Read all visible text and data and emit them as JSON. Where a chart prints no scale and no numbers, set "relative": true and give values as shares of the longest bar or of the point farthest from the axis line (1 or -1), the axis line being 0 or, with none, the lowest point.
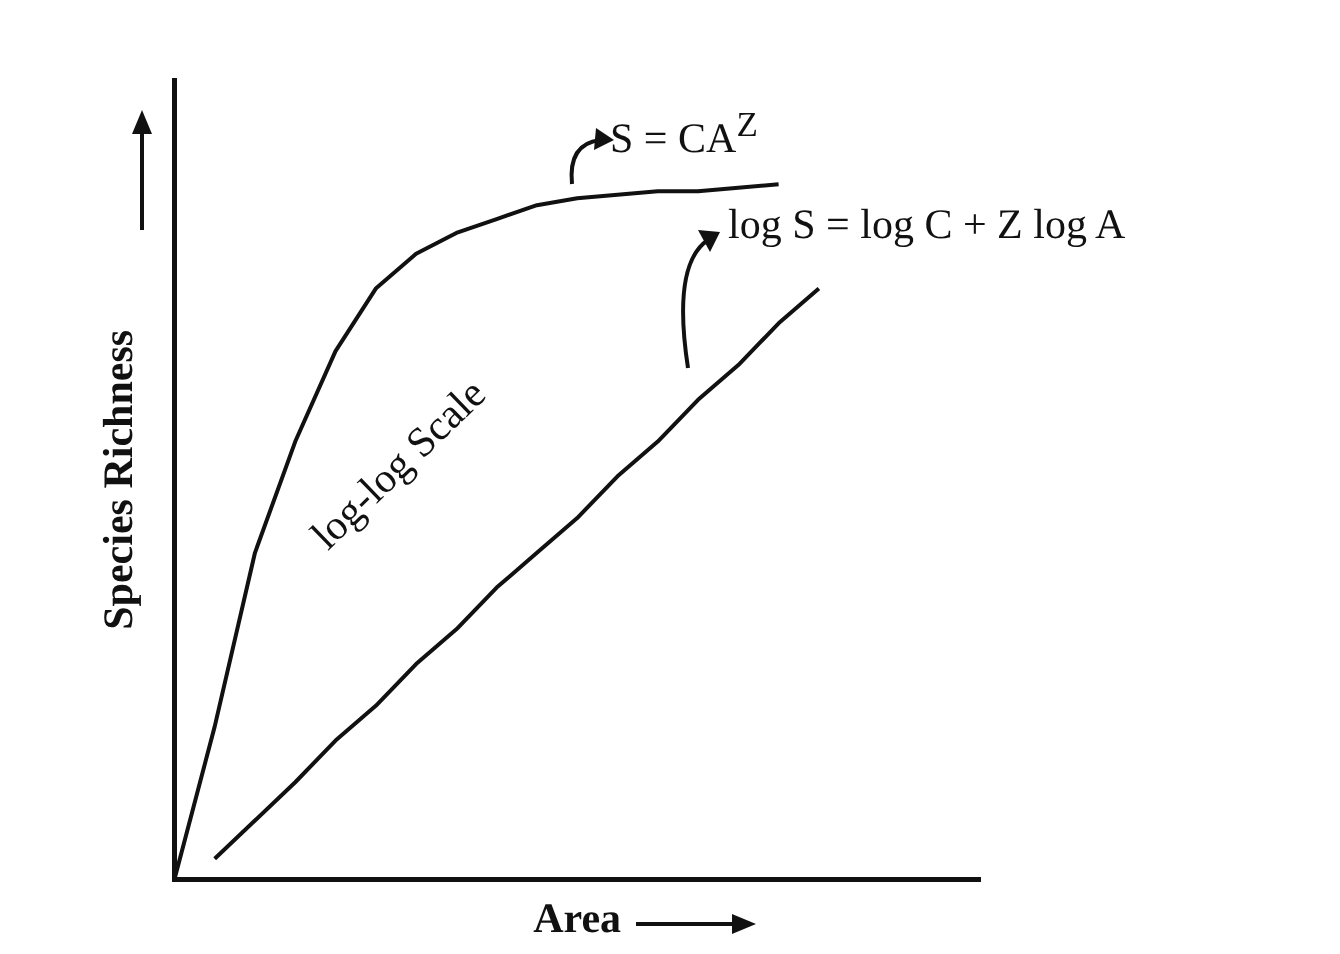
{
  "chart_data": {
    "type": "line",
    "relative": true,
    "xlabel": "Area",
    "ylabel": "Species Richness",
    "marker": "none",
    "line_style": "solid",
    "grid": false,
    "legend": false,
    "categories": [
      null,
      null,
      null,
      null,
      null,
      null,
      null,
      null,
      null,
      null,
      null,
      null,
      null,
      null,
      null,
      null,
      null,
      null,
      null,
      null,
      null
    ],
    "series": [
      {
        "color": "#111111",
        "values": [
          0,
          0.22,
          0.47,
          0.63,
          0.76,
          0.85,
          0.9,
          0.93,
          0.95,
          0.97,
          0.98,
          0.985,
          0.99,
          0.99,
          0.995,
          1,
          null,
          null,
          null,
          null,
          null
        ]
      },
      {
        "color": "#111111",
        "values": [
          null,
          0.03,
          0.085,
          0.14,
          0.2,
          0.25,
          0.31,
          0.36,
          0.42,
          0.47,
          0.52,
          0.58,
          0.63,
          0.69,
          0.74,
          0.8,
          0.85,
          null,
          null,
          null,
          null
        ]
      }
    ],
    "annotations": [
      "S = CA$^{Z}$",
      "log S = log C + Z log A",
      "log-log Scale"
    ]
  }
}
